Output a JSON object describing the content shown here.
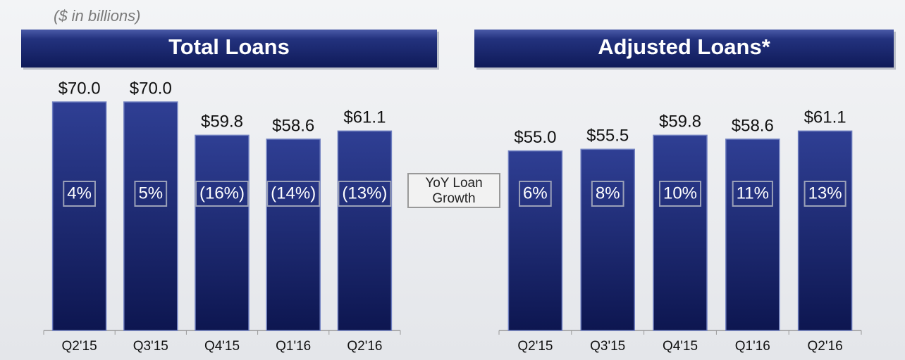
{
  "note": "($ in billions)",
  "growth_label": "YoY Loan Growth",
  "chart_data": [
    {
      "type": "bar",
      "title": "Total Loans",
      "categories": [
        "Q2'15",
        "Q3'15",
        "Q4'15",
        "Q1'16",
        "Q2'16"
      ],
      "values": [
        70.0,
        70.0,
        59.8,
        58.6,
        61.1
      ],
      "value_labels": [
        "$70.0",
        "$70.0",
        "$59.8",
        "$58.6",
        "$61.1"
      ],
      "ylim": [
        0,
        70
      ],
      "growth": {
        "values": [
          4,
          5,
          -16,
          -14,
          -13
        ],
        "value_labels": [
          "4%",
          "5%",
          "(16%)",
          "(14%)",
          "(13%)"
        ]
      }
    },
    {
      "type": "bar",
      "title": "Adjusted Loans*",
      "categories": [
        "Q2'15",
        "Q3'15",
        "Q4'15",
        "Q1'16",
        "Q2'16"
      ],
      "values": [
        55.0,
        55.5,
        59.8,
        58.6,
        61.1
      ],
      "value_labels": [
        "$55.0",
        "$55.5",
        "$59.8",
        "$58.6",
        "$61.1"
      ],
      "ylim": [
        0,
        70
      ],
      "growth": {
        "values": [
          6,
          8,
          10,
          11,
          13
        ],
        "value_labels": [
          "6%",
          "8%",
          "10%",
          "11%",
          "13%"
        ]
      }
    }
  ]
}
